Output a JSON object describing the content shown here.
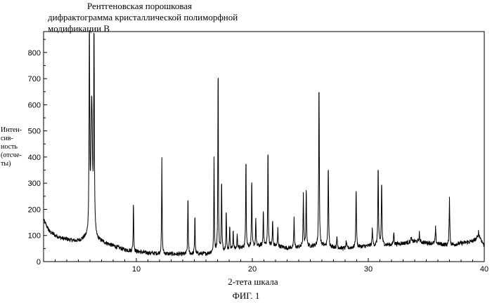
{
  "title_lines": [
    "Рентгеновская порошковая",
    "дифрактограмма кристаллической полиморфной",
    "модификации В"
  ],
  "ylabel_lines": [
    "Интен-",
    "сив-",
    "ность",
    "(отсче-",
    "ты)"
  ],
  "xlabel": "2-тета шкала",
  "figure_label": "ФИГ. 1",
  "chart_data": {
    "type": "line",
    "title": "Рентгеновская порошковая дифрактограмма кристаллической полиморфной модификации В",
    "xlabel": "2-тета шкала",
    "ylabel": "Интенсивность (отсчеты)",
    "xlim": [
      2,
      40
    ],
    "ylim": [
      0,
      880
    ],
    "xticks": [
      10,
      20,
      30,
      40
    ],
    "yticks": [
      0,
      100,
      200,
      300,
      400,
      500,
      600,
      700,
      800
    ],
    "grid": false,
    "baseline": [
      [
        2.0,
        160
      ],
      [
        2.5,
        115
      ],
      [
        3.0,
        100
      ],
      [
        3.5,
        90
      ],
      [
        4.0,
        85
      ],
      [
        4.5,
        80
      ],
      [
        5.0,
        78
      ],
      [
        5.5,
        85
      ],
      [
        7.0,
        75
      ],
      [
        8.0,
        60
      ],
      [
        9.0,
        45
      ],
      [
        10.0,
        38
      ],
      [
        11.0,
        33
      ],
      [
        12.0,
        30
      ],
      [
        14.0,
        28
      ],
      [
        16.0,
        30
      ],
      [
        17.0,
        38
      ],
      [
        18.0,
        45
      ],
      [
        19.0,
        52
      ],
      [
        20.0,
        58
      ],
      [
        21.0,
        62
      ],
      [
        22.0,
        60
      ],
      [
        23.0,
        52
      ],
      [
        24.0,
        55
      ],
      [
        25.0,
        58
      ],
      [
        26.0,
        60
      ],
      [
        27.0,
        55
      ],
      [
        28.0,
        50
      ],
      [
        29.0,
        55
      ],
      [
        30.0,
        60
      ],
      [
        31.0,
        62
      ],
      [
        32.0,
        65
      ],
      [
        33.0,
        70
      ],
      [
        34.0,
        78
      ],
      [
        35.0,
        72
      ],
      [
        36.0,
        68
      ],
      [
        37.0,
        62
      ],
      [
        38.0,
        70
      ],
      [
        39.0,
        78
      ],
      [
        39.6,
        95
      ],
      [
        40.0,
        60
      ]
    ],
    "peaks": [
      {
        "x": 5.95,
        "y": 880,
        "w": 0.06
      },
      {
        "x": 6.35,
        "y": 880,
        "w": 0.06
      },
      {
        "x": 6.15,
        "y": 600,
        "w": 0.16
      },
      {
        "x": 9.75,
        "y": 240,
        "w": 0.05
      },
      {
        "x": 12.2,
        "y": 400,
        "w": 0.05
      },
      {
        "x": 14.45,
        "y": 265,
        "w": 0.05
      },
      {
        "x": 15.05,
        "y": 190,
        "w": 0.05
      },
      {
        "x": 16.7,
        "y": 390,
        "w": 0.05
      },
      {
        "x": 17.05,
        "y": 800,
        "w": 0.05
      },
      {
        "x": 17.35,
        "y": 330,
        "w": 0.05
      },
      {
        "x": 17.75,
        "y": 205,
        "w": 0.05
      },
      {
        "x": 18.05,
        "y": 150,
        "w": 0.05
      },
      {
        "x": 18.35,
        "y": 125,
        "w": 0.05
      },
      {
        "x": 18.7,
        "y": 110,
        "w": 0.05
      },
      {
        "x": 19.45,
        "y": 430,
        "w": 0.05
      },
      {
        "x": 19.95,
        "y": 330,
        "w": 0.05
      },
      {
        "x": 20.3,
        "y": 170,
        "w": 0.05
      },
      {
        "x": 20.95,
        "y": 210,
        "w": 0.05
      },
      {
        "x": 21.35,
        "y": 460,
        "w": 0.05
      },
      {
        "x": 21.75,
        "y": 165,
        "w": 0.05
      },
      {
        "x": 22.2,
        "y": 130,
        "w": 0.05
      },
      {
        "x": 23.6,
        "y": 175,
        "w": 0.05
      },
      {
        "x": 24.4,
        "y": 255,
        "w": 0.06
      },
      {
        "x": 24.65,
        "y": 285,
        "w": 0.06
      },
      {
        "x": 25.75,
        "y": 705,
        "w": 0.06
      },
      {
        "x": 26.55,
        "y": 375,
        "w": 0.06
      },
      {
        "x": 27.3,
        "y": 95,
        "w": 0.06
      },
      {
        "x": 28.1,
        "y": 80,
        "w": 0.06
      },
      {
        "x": 28.95,
        "y": 285,
        "w": 0.06
      },
      {
        "x": 30.35,
        "y": 130,
        "w": 0.06
      },
      {
        "x": 30.85,
        "y": 375,
        "w": 0.06
      },
      {
        "x": 31.15,
        "y": 315,
        "w": 0.06
      },
      {
        "x": 32.2,
        "y": 115,
        "w": 0.06
      },
      {
        "x": 33.7,
        "y": 95,
        "w": 0.06
      },
      {
        "x": 34.4,
        "y": 110,
        "w": 0.06
      },
      {
        "x": 35.8,
        "y": 130,
        "w": 0.06
      },
      {
        "x": 37.0,
        "y": 250,
        "w": 0.06
      },
      {
        "x": 39.5,
        "y": 115,
        "w": 0.07
      }
    ],
    "noise_amplitude": 8,
    "line_color": "#000000"
  }
}
